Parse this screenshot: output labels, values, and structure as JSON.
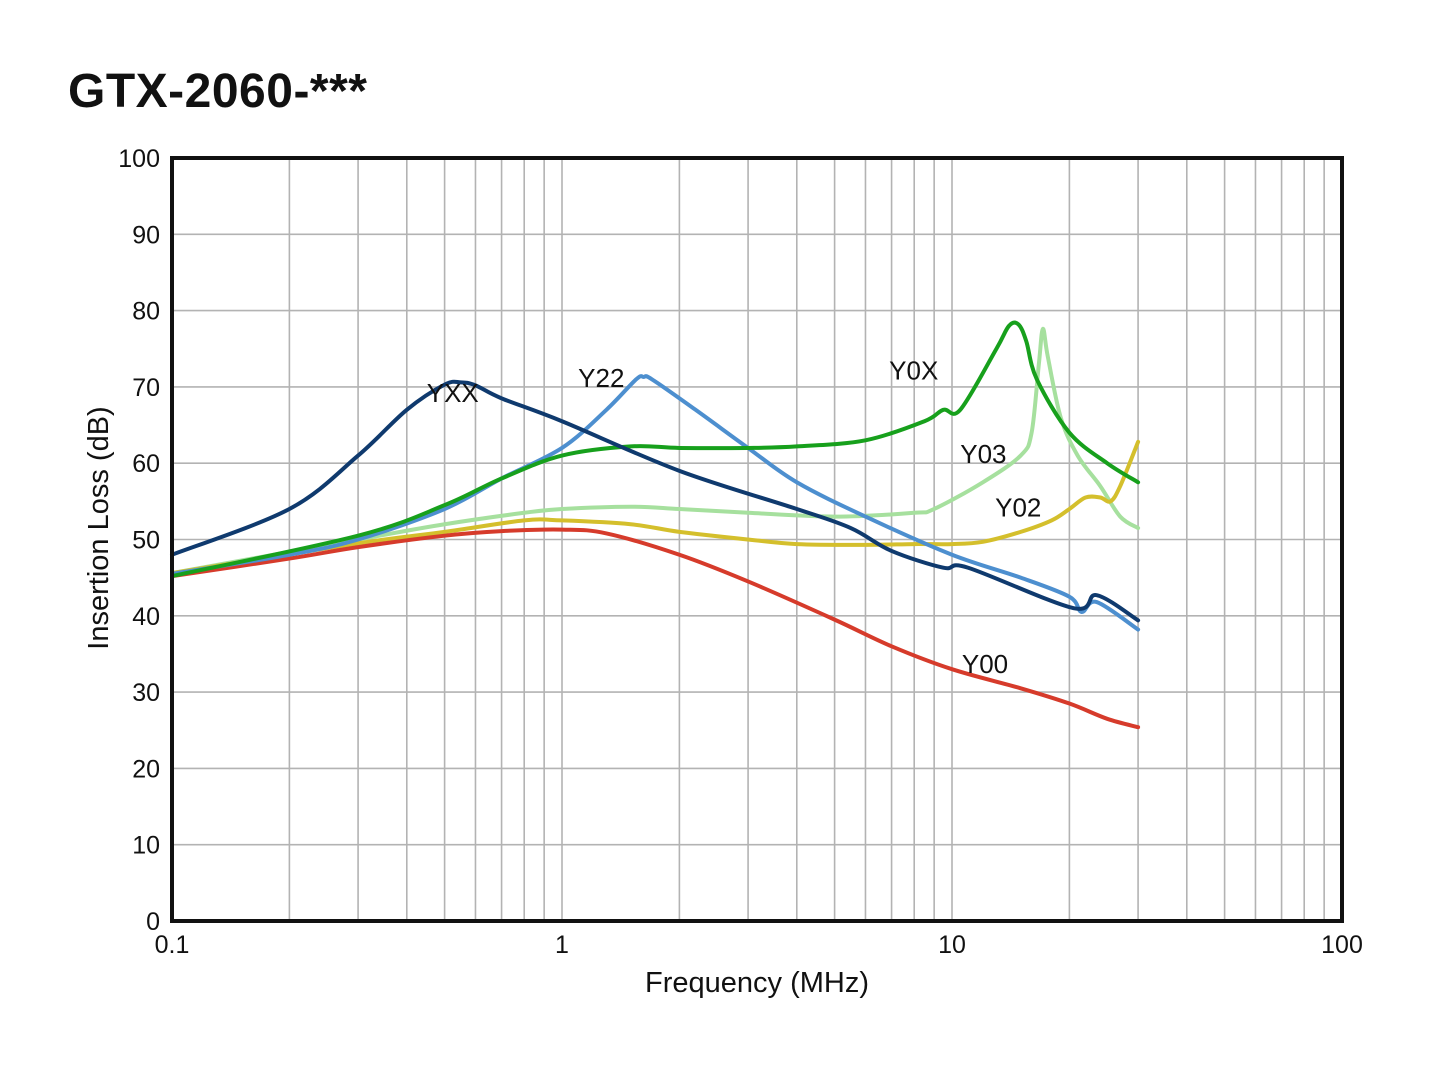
{
  "title": "GTX-2060-***",
  "chart_data": {
    "type": "line",
    "title": "GTX-2060-***",
    "xlabel": "Frequency (MHz)",
    "ylabel": "Insertion Loss (dB)",
    "xscale": "log",
    "xlim": [
      0.1,
      100
    ],
    "ylim": [
      0,
      100
    ],
    "grid": true,
    "legend": "none (labels placed next to curves)",
    "x_ticks": [
      {
        "value": 0.1,
        "label": "0.1"
      },
      {
        "value": 1,
        "label": "1"
      },
      {
        "value": 10,
        "label": "10"
      },
      {
        "value": 100,
        "label": "100"
      }
    ],
    "y_ticks": [
      "0",
      "10",
      "20",
      "30",
      "40",
      "50",
      "60",
      "70",
      "80",
      "90",
      "100"
    ],
    "series": [
      {
        "name": "YXX",
        "color": "#0f3a6e",
        "points": [
          [
            0.1,
            48
          ],
          [
            0.2,
            54
          ],
          [
            0.3,
            61
          ],
          [
            0.4,
            67
          ],
          [
            0.5,
            70.3
          ],
          [
            0.55,
            70.6
          ],
          [
            0.6,
            70.2
          ],
          [
            0.7,
            68.5
          ],
          [
            1,
            65.5
          ],
          [
            2,
            59
          ],
          [
            4,
            54
          ],
          [
            5.5,
            51.5
          ],
          [
            7,
            48.5
          ],
          [
            9.5,
            46.3
          ],
          [
            11,
            46.3
          ],
          [
            20.5,
            41
          ],
          [
            23.5,
            42.7
          ],
          [
            30,
            39.4
          ]
        ]
      },
      {
        "name": "Y22",
        "color": "#4d8fcf",
        "points": [
          [
            0.1,
            45.5
          ],
          [
            0.2,
            48
          ],
          [
            0.3,
            50
          ],
          [
            0.5,
            54
          ],
          [
            0.7,
            58
          ],
          [
            1,
            62
          ],
          [
            1.3,
            67
          ],
          [
            1.55,
            71
          ],
          [
            1.62,
            71.3
          ],
          [
            1.7,
            71
          ],
          [
            2.2,
            67
          ],
          [
            3,
            62
          ],
          [
            4,
            57.5
          ],
          [
            6,
            53
          ],
          [
            10,
            48
          ],
          [
            15,
            45
          ],
          [
            20,
            42.5
          ],
          [
            21.5,
            40.5
          ],
          [
            23.5,
            41.8
          ],
          [
            30,
            38.2
          ]
        ]
      },
      {
        "name": "Y0X",
        "color": "#17a01c",
        "points": [
          [
            0.1,
            45.2
          ],
          [
            0.3,
            50.5
          ],
          [
            0.5,
            54.5
          ],
          [
            0.7,
            58
          ],
          [
            1,
            61
          ],
          [
            1.5,
            62.2
          ],
          [
            2,
            62
          ],
          [
            3,
            62
          ],
          [
            4,
            62.2
          ],
          [
            6,
            63
          ],
          [
            8.5,
            65.5
          ],
          [
            9.5,
            67
          ],
          [
            10.5,
            67
          ],
          [
            13,
            75
          ],
          [
            14,
            78
          ],
          [
            14.8,
            78.2
          ],
          [
            15.5,
            76
          ],
          [
            16.5,
            71
          ],
          [
            20,
            64
          ],
          [
            25,
            60
          ],
          [
            30,
            57.5
          ]
        ]
      },
      {
        "name": "Y03",
        "color": "#a6e09e",
        "points": [
          [
            0.1,
            45.6
          ],
          [
            0.3,
            50
          ],
          [
            0.5,
            52
          ],
          [
            0.8,
            53.5
          ],
          [
            1,
            54
          ],
          [
            1.5,
            54.3
          ],
          [
            2,
            54
          ],
          [
            3,
            53.5
          ],
          [
            5,
            53
          ],
          [
            8,
            53.5
          ],
          [
            9,
            54
          ],
          [
            12,
            57.5
          ],
          [
            15,
            61
          ],
          [
            16,
            64
          ],
          [
            16.7,
            73
          ],
          [
            17.1,
            77.6
          ],
          [
            17.6,
            74
          ],
          [
            19,
            66
          ],
          [
            21,
            61
          ],
          [
            24,
            57
          ],
          [
            27,
            53
          ],
          [
            30,
            51.5
          ]
        ]
      },
      {
        "name": "Y02",
        "color": "#d4bf2c",
        "points": [
          [
            0.1,
            45.6
          ],
          [
            0.3,
            49.5
          ],
          [
            0.5,
            51
          ],
          [
            0.8,
            52.5
          ],
          [
            1,
            52.5
          ],
          [
            1.5,
            52
          ],
          [
            2,
            51
          ],
          [
            3,
            50
          ],
          [
            4,
            49.4
          ],
          [
            6,
            49.3
          ],
          [
            8,
            49.4
          ],
          [
            10,
            49.4
          ],
          [
            12,
            49.7
          ],
          [
            15,
            51
          ],
          [
            18,
            52.5
          ],
          [
            20,
            54
          ],
          [
            22,
            55.5
          ],
          [
            24,
            55.5
          ],
          [
            25.5,
            55
          ],
          [
            27,
            57
          ],
          [
            30,
            62.8
          ]
        ]
      },
      {
        "name": "Y00",
        "color": "#d63b2b",
        "points": [
          [
            0.1,
            45.2
          ],
          [
            0.2,
            47.5
          ],
          [
            0.3,
            49
          ],
          [
            0.5,
            50.5
          ],
          [
            0.7,
            51.1
          ],
          [
            1,
            51.3
          ],
          [
            1.3,
            50.8
          ],
          [
            2,
            48
          ],
          [
            3,
            44.5
          ],
          [
            5,
            39.5
          ],
          [
            7,
            36
          ],
          [
            10,
            33
          ],
          [
            15,
            30.5
          ],
          [
            20,
            28.5
          ],
          [
            25,
            26.5
          ],
          [
            30,
            25.4
          ]
        ]
      }
    ],
    "annotations": [
      {
        "text": "YXX",
        "series": "YXX",
        "x": 0.45,
        "y": 68
      },
      {
        "text": "Y22",
        "series": "Y22",
        "x": 1.1,
        "y": 70
      },
      {
        "text": "Y0X",
        "series": "Y0X",
        "x": 6.9,
        "y": 71
      },
      {
        "text": "Y03",
        "series": "Y03",
        "x": 10.5,
        "y": 60
      },
      {
        "text": "Y02",
        "series": "Y02",
        "x": 12.9,
        "y": 53
      },
      {
        "text": "Y00",
        "series": "Y00",
        "x": 10.6,
        "y": 32.5
      }
    ]
  }
}
